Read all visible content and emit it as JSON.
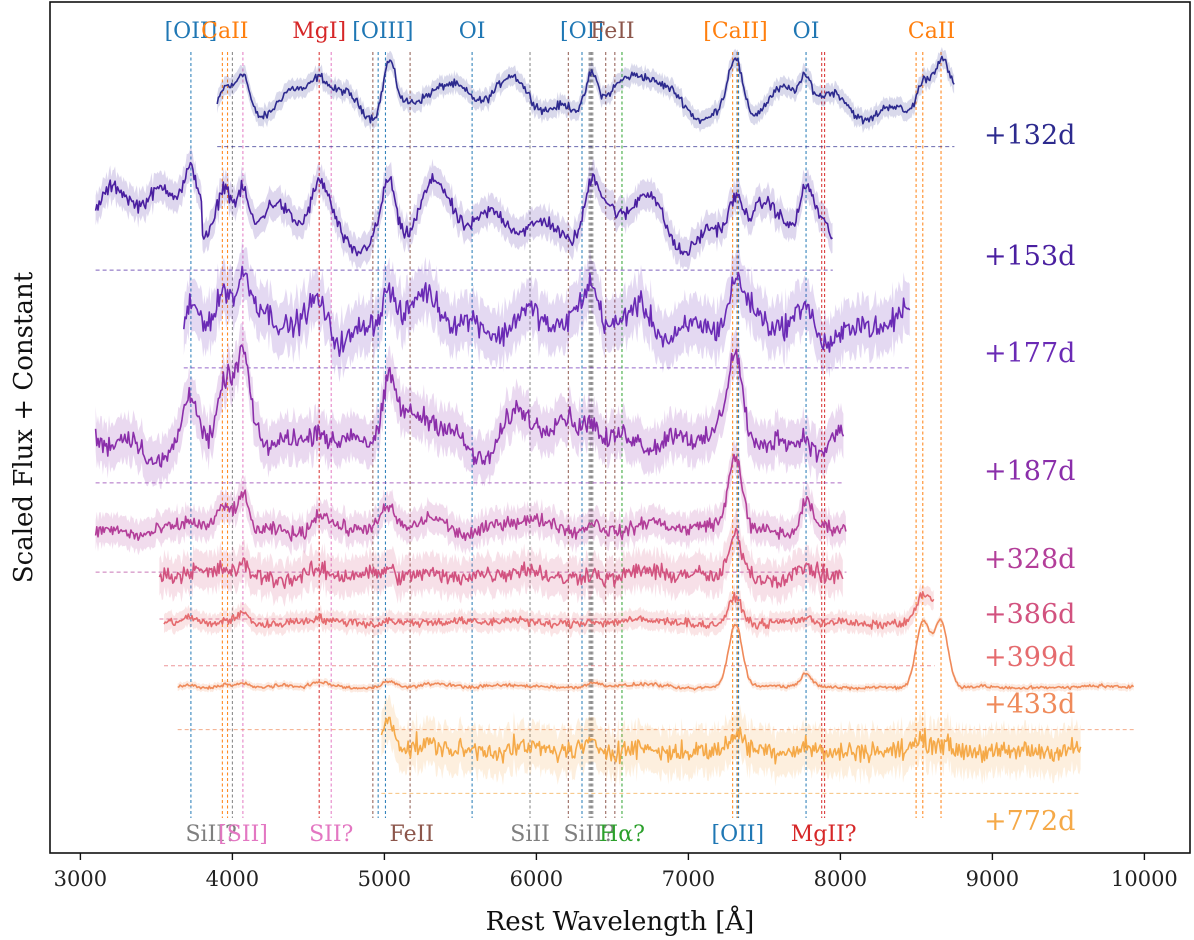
{
  "chart_data": {
    "type": "line",
    "xlabel": "Rest Wavelength [Å]",
    "ylabel": "Scaled Flux + Constant",
    "xlim": [
      2800,
      10300
    ],
    "ylim": [
      0,
      10
    ],
    "xticks": [
      3000,
      4000,
      5000,
      6000,
      7000,
      8000,
      9000,
      10000
    ],
    "grid": false,
    "legend": "labels at right of each spectrum",
    "colors": {
      "OI_family": "#1f77b4",
      "CaII": "#ff7f0e",
      "MgI": "#d62728",
      "FeII": "#8c564b",
      "SiII": "#7f7f7f",
      "SII": "#e377c2",
      "Halpha": "#2ca02c"
    },
    "series": [
      {
        "name": "+132d",
        "color": "#2d2a8e",
        "offset": 8.3,
        "x_start": 3900,
        "x_end": 8750
      },
      {
        "name": "+153d",
        "color": "#4a1fa0",
        "offset": 6.85,
        "x_start": 3100,
        "x_end": 7950
      },
      {
        "name": "+177d",
        "color": "#6a2ab5",
        "offset": 5.7,
        "x_start": 3680,
        "x_end": 8460
      },
      {
        "name": "+187d",
        "color": "#8a2eaa",
        "offset": 4.35,
        "x_start": 3100,
        "x_end": 8020
      },
      {
        "name": "+328d",
        "color": "#b33e99",
        "offset": 3.3,
        "x_start": 3100,
        "x_end": 8040
      },
      {
        "name": "+386d",
        "color": "#d2527f",
        "offset": 2.75,
        "x_start": 3520,
        "x_end": 8020
      },
      {
        "name": "+399d",
        "color": "#e56b6e",
        "offset": 2.2,
        "x_start": 3550,
        "x_end": 8620
      },
      {
        "name": "+433d",
        "color": "#ef8a5a",
        "offset": 1.45,
        "x_start": 3640,
        "x_end": 9930
      },
      {
        "name": "+772d",
        "color": "#f5a948",
        "offset": 0.7,
        "x_start": 4980,
        "x_end": 9580
      }
    ],
    "top_annotations": [
      {
        "text": "[OII]",
        "wavelength": 3727,
        "color": "#1f77b4"
      },
      {
        "text": "CaII",
        "wavelength": 3950,
        "color": "#ff7f0e"
      },
      {
        "text": "MgI]",
        "wavelength": 4571,
        "color": "#d62728"
      },
      {
        "text": "[OIII]",
        "wavelength": 4990,
        "color": "#1f77b4"
      },
      {
        "text": "OI",
        "wavelength": 5577,
        "color": "#1f77b4"
      },
      {
        "text": "[OI]",
        "wavelength": 6300,
        "color": "#1f77b4"
      },
      {
        "text": "FeII",
        "wavelength": 6500,
        "color": "#8c564b"
      },
      {
        "text": "[CaII]",
        "wavelength": 7310,
        "color": "#ff7f0e"
      },
      {
        "text": "OI",
        "wavelength": 7774,
        "color": "#1f77b4"
      },
      {
        "text": "CaII",
        "wavelength": 8600,
        "color": "#ff7f0e"
      }
    ],
    "bottom_annotations": [
      {
        "text": "SiII?",
        "wavelength": 3860,
        "color": "#7f7f7f"
      },
      {
        "text": "[SII]",
        "wavelength": 4070,
        "color": "#e377c2"
      },
      {
        "text": "SII?",
        "wavelength": 4650,
        "color": "#e377c2"
      },
      {
        "text": "FeII",
        "wavelength": 5180,
        "color": "#8c564b"
      },
      {
        "text": "SiII",
        "wavelength": 5958,
        "color": "#7f7f7f"
      },
      {
        "text": "SiII?",
        "wavelength": 6347,
        "color": "#7f7f7f"
      },
      {
        "text": "Hα?",
        "wavelength": 6563,
        "color": "#2ca02c"
      },
      {
        "text": "[OII]",
        "wavelength": 7325,
        "color": "#1f77b4"
      },
      {
        "text": "MgII?",
        "wavelength": 7890,
        "color": "#d62728"
      }
    ],
    "vertical_lines": [
      {
        "wavelength": 3727,
        "color": "#1f77b4"
      },
      {
        "wavelength": 3934,
        "color": "#ff7f0e"
      },
      {
        "wavelength": 3968,
        "color": "#ff7f0e"
      },
      {
        "wavelength": 4000,
        "color": "#7f7f7f"
      },
      {
        "wavelength": 4069,
        "color": "#e377c2"
      },
      {
        "wavelength": 4571,
        "color": "#d62728"
      },
      {
        "wavelength": 4650,
        "color": "#e377c2"
      },
      {
        "wavelength": 4924,
        "color": "#8c564b"
      },
      {
        "wavelength": 4959,
        "color": "#1f77b4"
      },
      {
        "wavelength": 5007,
        "color": "#1f77b4"
      },
      {
        "wavelength": 5169,
        "color": "#8c564b"
      },
      {
        "wavelength": 5577,
        "color": "#1f77b4"
      },
      {
        "wavelength": 5958,
        "color": "#7f7f7f"
      },
      {
        "wavelength": 6210,
        "color": "#8c564b"
      },
      {
        "wavelength": 6300,
        "color": "#1f77b4"
      },
      {
        "wavelength": 6347,
        "color": "#7f7f7f"
      },
      {
        "wavelength": 6355,
        "color": "#7f7f7f"
      },
      {
        "wavelength": 6363,
        "color": "#7f7f7f"
      },
      {
        "wavelength": 6371,
        "color": "#7f7f7f"
      },
      {
        "wavelength": 6456,
        "color": "#8c564b"
      },
      {
        "wavelength": 6516,
        "color": "#8c564b"
      },
      {
        "wavelength": 6563,
        "color": "#2ca02c"
      },
      {
        "wavelength": 7291,
        "color": "#ff7f0e"
      },
      {
        "wavelength": 7320,
        "color": "#1f77b4"
      },
      {
        "wavelength": 7324,
        "color": "#ff7f0e"
      },
      {
        "wavelength": 7330,
        "color": "#1f77b4"
      },
      {
        "wavelength": 7774,
        "color": "#1f77b4"
      },
      {
        "wavelength": 7877,
        "color": "#d62728"
      },
      {
        "wavelength": 7896,
        "color": "#d62728"
      },
      {
        "wavelength": 8498,
        "color": "#ff7f0e"
      },
      {
        "wavelength": 8542,
        "color": "#ff7f0e"
      },
      {
        "wavelength": 8662,
        "color": "#ff7f0e"
      }
    ],
    "features": [
      {
        "wavelength": 3727,
        "width": 45
      },
      {
        "wavelength": 3950,
        "width": 45
      },
      {
        "wavelength": 4070,
        "width": 40
      },
      {
        "wavelength": 4571,
        "width": 55
      },
      {
        "wavelength": 5030,
        "width": 40
      },
      {
        "wavelength": 5300,
        "width": 90
      },
      {
        "wavelength": 5900,
        "width": 110
      },
      {
        "wavelength": 6363,
        "width": 40
      },
      {
        "wavelength": 6700,
        "width": 90
      },
      {
        "wavelength": 7310,
        "width": 45
      },
      {
        "wavelength": 7774,
        "width": 40
      },
      {
        "wavelength": 8542,
        "width": 45
      },
      {
        "wavelength": 8662,
        "width": 45
      }
    ]
  }
}
